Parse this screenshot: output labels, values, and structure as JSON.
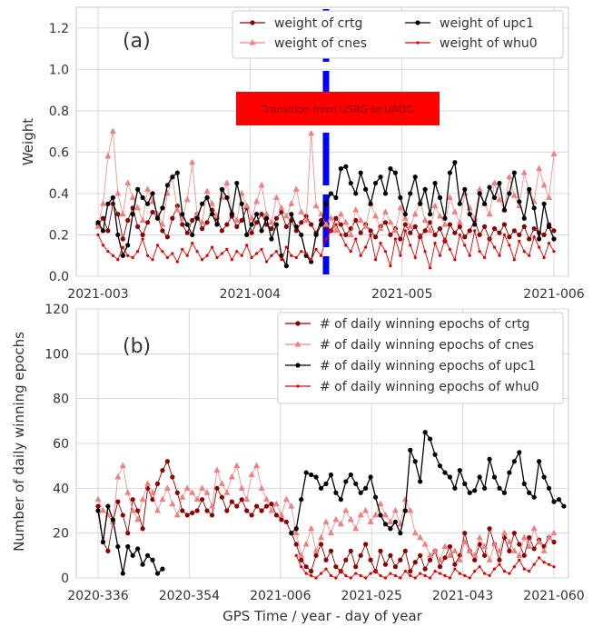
{
  "figure": {
    "xlabel_shared": "GPS Time / year - day of year"
  },
  "chart_data": [
    {
      "type": "line",
      "panel_label": "(a)",
      "ylabel": "Weight",
      "xlabel": "",
      "ylim": [
        0,
        1.3
      ],
      "yticks": [
        0.0,
        0.2,
        0.4,
        0.6,
        0.8,
        1.0,
        1.2
      ],
      "xticks": [
        "2021-003",
        "2021-004",
        "2021-005",
        "2021-006"
      ],
      "x_day_range": [
        0,
        92
      ],
      "grid": true,
      "legend": {
        "placement": "top-right",
        "columns": 2
      },
      "annotation": {
        "text": "Transition from USRG to UADG",
        "color": "#ff0000"
      },
      "vline": {
        "x_day": 46,
        "color": "#0000ff",
        "style": "dashed"
      },
      "series": [
        {
          "name": "weight of crtg",
          "color": "#8b0000",
          "marker": "circle",
          "values": [
            0.25,
            0.28,
            0.22,
            0.35,
            0.3,
            0.18,
            0.27,
            0.33,
            0.24,
            0.2,
            0.26,
            0.31,
            0.29,
            0.22,
            0.19,
            0.28,
            0.34,
            0.25,
            0.21,
            0.27,
            0.3,
            0.23,
            0.26,
            0.32,
            0.28,
            0.22,
            0.25,
            0.29,
            0.24,
            0.27,
            0.33,
            0.21,
            0.26,
            0.3,
            0.25,
            0.23,
            0.28,
            0.31,
            0.24,
            0.27,
            0.22,
            0.26,
            0.29,
            0.25,
            0.21,
            0.27,
            0.24,
            0.22,
            0.28,
            0.25,
            0.2,
            0.23,
            0.27,
            0.21,
            0.25,
            0.22,
            0.19,
            0.24,
            0.26,
            0.2,
            0.23,
            0.18,
            0.25,
            0.21,
            0.24,
            0.19,
            0.22,
            0.26,
            0.2,
            0.23,
            0.17,
            0.25,
            0.21,
            0.24,
            0.19,
            0.22,
            0.27,
            0.2,
            0.24,
            0.18,
            0.23,
            0.21,
            0.25,
            0.19,
            0.22,
            0.2,
            0.24,
            0.18,
            0.23,
            0.21,
            0.2,
            0.25,
            0.22
          ]
        },
        {
          "name": "weight of cnes",
          "color": "#f08080",
          "marker": "triangle",
          "values": [
            0.24,
            0.35,
            0.58,
            0.7,
            0.4,
            0.3,
            0.45,
            0.38,
            0.33,
            0.27,
            0.42,
            0.36,
            0.3,
            0.25,
            0.4,
            0.48,
            0.32,
            0.28,
            0.37,
            0.55,
            0.3,
            0.26,
            0.41,
            0.35,
            0.29,
            0.38,
            0.45,
            0.31,
            0.27,
            0.4,
            0.34,
            0.28,
            0.36,
            0.44,
            0.3,
            0.26,
            0.38,
            0.33,
            0.29,
            0.35,
            0.42,
            0.31,
            0.27,
            0.69,
            0.34,
            0.3,
            0.25,
            0.28,
            0.22,
            0.3,
            0.26,
            0.2,
            0.32,
            0.27,
            0.24,
            0.35,
            0.29,
            0.23,
            0.31,
            0.26,
            0.22,
            0.33,
            0.28,
            0.24,
            0.3,
            0.36,
            0.27,
            0.22,
            0.34,
            0.29,
            0.25,
            0.38,
            0.31,
            0.26,
            0.4,
            0.33,
            0.28,
            0.42,
            0.35,
            0.3,
            0.45,
            0.37,
            0.32,
            0.48,
            0.39,
            0.34,
            0.5,
            0.41,
            0.36,
            0.52,
            0.44,
            0.38,
            0.59
          ]
        },
        {
          "name": "weight of upc1",
          "color": "#000000",
          "marker": "circle",
          "values": [
            0.26,
            0.22,
            0.35,
            0.38,
            0.2,
            0.1,
            0.15,
            0.3,
            0.42,
            0.38,
            0.35,
            0.4,
            0.28,
            0.33,
            0.44,
            0.48,
            0.5,
            0.3,
            0.25,
            0.2,
            0.28,
            0.35,
            0.38,
            0.3,
            0.25,
            0.42,
            0.38,
            0.3,
            0.45,
            0.35,
            0.2,
            0.25,
            0.3,
            0.22,
            0.28,
            0.18,
            0.25,
            0.1,
            0.05,
            0.3,
            0.24,
            0.2,
            0.1,
            0.07,
            0.2,
            0.25,
            0.35,
            0.4,
            0.38,
            0.52,
            0.53,
            0.45,
            0.4,
            0.5,
            0.42,
            0.35,
            0.45,
            0.48,
            0.4,
            0.52,
            0.5,
            0.38,
            0.3,
            0.4,
            0.48,
            0.35,
            0.42,
            0.3,
            0.45,
            0.38,
            0.28,
            0.5,
            0.55,
            0.35,
            0.42,
            0.3,
            0.25,
            0.4,
            0.35,
            0.43,
            0.38,
            0.45,
            0.32,
            0.4,
            0.5,
            0.36,
            0.28,
            0.42,
            0.33,
            0.18,
            0.35,
            0.24,
            0.18
          ]
        },
        {
          "name": "weight of whu0",
          "color": "#e00000",
          "marker": "dot",
          "values": [
            0.2,
            0.15,
            0.12,
            0.1,
            0.08,
            0.14,
            0.1,
            0.09,
            0.12,
            0.18,
            0.1,
            0.08,
            0.15,
            0.12,
            0.09,
            0.11,
            0.07,
            0.13,
            0.1,
            0.16,
            0.12,
            0.08,
            0.1,
            0.14,
            0.09,
            0.11,
            0.13,
            0.08,
            0.12,
            0.1,
            0.15,
            0.09,
            0.11,
            0.13,
            0.07,
            0.1,
            0.12,
            0.08,
            0.14,
            0.1,
            0.09,
            0.12,
            0.11,
            0.08,
            0.13,
            0.1,
            0.18,
            0.22,
            0.25,
            0.2,
            0.15,
            0.12,
            0.18,
            0.1,
            0.14,
            0.2,
            0.08,
            0.16,
            0.12,
            0.05,
            0.18,
            0.1,
            0.22,
            0.15,
            0.09,
            0.2,
            0.12,
            0.04,
            0.16,
            0.1,
            0.18,
            0.13,
            0.08,
            0.2,
            0.15,
            0.1,
            0.22,
            0.12,
            0.09,
            0.18,
            0.14,
            0.1,
            0.2,
            0.15,
            0.08,
            0.17,
            0.12,
            0.1,
            0.19,
            0.14,
            0.09,
            0.16,
            0.12
          ]
        }
      ]
    },
    {
      "type": "line",
      "panel_label": "(b)",
      "ylabel": "Number of daily winning epochs",
      "xlabel": "GPS Time / year - day of year",
      "ylim": [
        0,
        120
      ],
      "yticks": [
        0,
        20,
        40,
        60,
        80,
        100,
        120
      ],
      "xticks": [
        "2020-336",
        "2020-354",
        "2021-006",
        "2021-025",
        "2021-043",
        "2021-060"
      ],
      "x_day_range": [
        0,
        92
      ],
      "grid": true,
      "legend": {
        "placement": "top-right",
        "columns": 1
      },
      "series": [
        {
          "name": "# of daily winning epochs of crtg",
          "color": "#8b0000",
          "marker": "circle",
          "values": [
            32,
            16,
            12,
            25,
            34,
            28,
            20,
            35,
            30,
            22,
            40,
            35,
            42,
            48,
            52,
            45,
            38,
            30,
            28,
            29,
            30,
            35,
            30,
            28,
            40,
            36,
            30,
            34,
            32,
            35,
            30,
            28,
            32,
            30,
            32,
            33,
            28,
            26,
            25,
            20,
            15,
            8,
            5,
            3,
            10,
            15,
            8,
            12,
            5,
            3,
            8,
            12,
            5,
            10,
            15,
            8,
            3,
            12,
            6,
            10,
            5,
            8,
            12,
            3,
            7,
            10,
            4,
            8,
            12,
            5,
            9,
            14,
            6,
            10,
            20,
            12,
            8,
            15,
            10,
            22,
            15,
            8,
            18,
            12,
            20,
            15,
            10,
            18,
            13,
            17,
            14,
            18,
            16
          ]
        },
        {
          "name": "# of daily winning epochs of cnes",
          "color": "#f08080",
          "marker": "triangle",
          "values": [
            35,
            30,
            28,
            25,
            45,
            50,
            38,
            30,
            26,
            35,
            42,
            38,
            30,
            35,
            40,
            33,
            28,
            36,
            40,
            38,
            35,
            40,
            38,
            32,
            48,
            42,
            38,
            45,
            50,
            40,
            35,
            46,
            50,
            40,
            35,
            30,
            33,
            28,
            35,
            32,
            20,
            10,
            15,
            22,
            12,
            18,
            25,
            20,
            26,
            24,
            30,
            26,
            22,
            28,
            30,
            25,
            28,
            33,
            28,
            25,
            30,
            24,
            35,
            30,
            20,
            18,
            15,
            10,
            12,
            8,
            14,
            10,
            12,
            8,
            16,
            12,
            10,
            18,
            14,
            8,
            15,
            12,
            20,
            16,
            12,
            10,
            18,
            14,
            22,
            16,
            12,
            18,
            20
          ]
        },
        {
          "name": "# of daily winning epochs of upc1",
          "color": "#000000",
          "marker": "circle",
          "values": [
            30,
            16,
            32,
            26,
            14,
            2,
            14,
            10,
            13,
            6,
            10,
            8,
            2,
            4,
            null,
            null,
            null,
            null,
            null,
            null,
            null,
            null,
            null,
            null,
            null,
            null,
            null,
            null,
            null,
            null,
            null,
            null,
            null,
            null,
            null,
            null,
            null,
            null,
            null,
            20,
            22,
            35,
            47,
            46,
            45,
            40,
            42,
            46,
            38,
            35,
            43,
            46,
            42,
            38,
            40,
            45,
            36,
            28,
            24,
            22,
            25,
            20,
            30,
            57,
            52,
            43,
            65,
            62,
            55,
            50,
            47,
            45,
            40,
            48,
            42,
            38,
            39,
            45,
            40,
            53,
            45,
            40,
            38,
            47,
            52,
            56,
            42,
            38,
            36,
            52,
            45,
            40,
            34,
            35,
            32
          ]
        },
        {
          "name": "# of daily winning epochs of whu0",
          "color": "#e00000",
          "marker": "dot",
          "values": [
            null,
            null,
            null,
            null,
            null,
            null,
            null,
            null,
            null,
            null,
            null,
            null,
            null,
            null,
            null,
            null,
            null,
            null,
            null,
            null,
            null,
            null,
            null,
            null,
            null,
            null,
            null,
            null,
            null,
            null,
            null,
            null,
            null,
            null,
            null,
            null,
            null,
            null,
            null,
            null,
            10,
            5,
            2,
            1,
            0,
            2,
            4,
            1,
            0,
            3,
            1,
            0,
            2,
            1,
            0,
            2,
            3,
            1,
            0,
            2,
            1,
            0,
            3,
            1,
            0,
            2,
            1,
            0,
            3,
            2,
            1,
            0,
            4,
            2,
            1,
            0,
            3,
            5,
            2,
            1,
            4,
            6,
            3,
            2,
            5,
            8,
            4,
            3,
            6,
            9,
            7,
            6,
            5
          ]
        }
      ]
    }
  ]
}
